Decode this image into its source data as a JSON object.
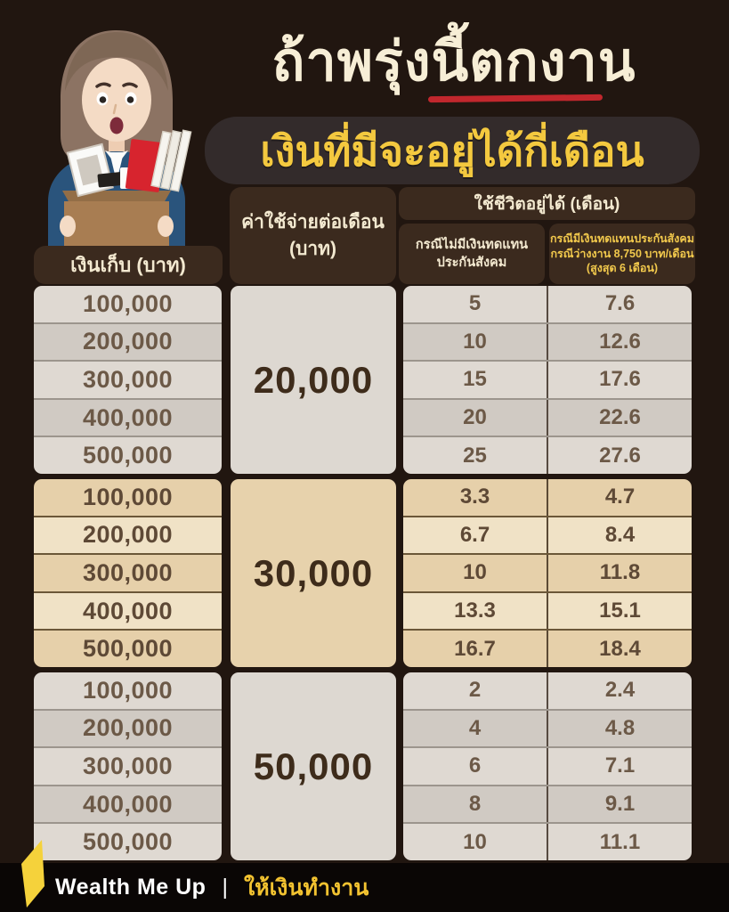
{
  "header": {
    "title": "ถ้าพรุ่งนี้ตกงาน",
    "subtitle": "เงินที่มีจะอยู่ได้กี่เดือน"
  },
  "table": {
    "headers": {
      "savings": "เงินเก็บ (บาท)",
      "expense_line1": "ค่าใช้จ่ายต่อเดือน",
      "expense_line2": "(บาท)",
      "months": "ใช้ชีวิตอยู่ได้ (เดือน)",
      "no_comp_line1": "กรณีไม่มีเงินทดแทน",
      "no_comp_line2": "ประกันสังคม",
      "with_comp_line1": "กรณีมีเงินทดแทนประกันสังคม",
      "with_comp_line2": "กรณีว่างงาน 8,750 บาท/เดือน",
      "with_comp_line3": "(สูงสุด 6 เดือน)"
    },
    "sections": [
      {
        "expense": "20,000",
        "theme": "gray",
        "rows": [
          {
            "savings": "100,000",
            "no_comp": "5",
            "with_comp": "7.6"
          },
          {
            "savings": "200,000",
            "no_comp": "10",
            "with_comp": "12.6"
          },
          {
            "savings": "300,000",
            "no_comp": "15",
            "with_comp": "17.6"
          },
          {
            "savings": "400,000",
            "no_comp": "20",
            "with_comp": "22.6"
          },
          {
            "savings": "500,000",
            "no_comp": "25",
            "with_comp": "27.6"
          }
        ]
      },
      {
        "expense": "30,000",
        "theme": "tan",
        "rows": [
          {
            "savings": "100,000",
            "no_comp": "3.3",
            "with_comp": "4.7"
          },
          {
            "savings": "200,000",
            "no_comp": "6.7",
            "with_comp": "8.4"
          },
          {
            "savings": "300,000",
            "no_comp": "10",
            "with_comp": "11.8"
          },
          {
            "savings": "400,000",
            "no_comp": "13.3",
            "with_comp": "15.1"
          },
          {
            "savings": "500,000",
            "no_comp": "16.7",
            "with_comp": "18.4"
          }
        ]
      },
      {
        "expense": "50,000",
        "theme": "gray",
        "rows": [
          {
            "savings": "100,000",
            "no_comp": "2",
            "with_comp": "2.4"
          },
          {
            "savings": "200,000",
            "no_comp": "4",
            "with_comp": "4.8"
          },
          {
            "savings": "300,000",
            "no_comp": "6",
            "with_comp": "7.1"
          },
          {
            "savings": "400,000",
            "no_comp": "8",
            "with_comp": "9.1"
          },
          {
            "savings": "500,000",
            "no_comp": "10",
            "with_comp": "11.1"
          }
        ]
      }
    ]
  },
  "footer": {
    "brand": "Wealth Me Up",
    "separator": "|",
    "tagline": "ให้เงินทำงาน"
  },
  "palette": {
    "background": "#211610",
    "header_box": "#3B2A1E",
    "cream_text": "#F7EED6",
    "gold_text": "#F4C93F",
    "gold_subheader": "#F2C94C",
    "red_underline": "#C1272D",
    "footer_bg": "#0A0605",
    "footer_yellow": "#F2C230",
    "logo_yellow": "#F5D23B",
    "themes": {
      "gray": {
        "rowA": "#DFD9D2",
        "rowB": "#D0CAC3",
        "cellB": "#DDD8D1",
        "sep": "#9C958D",
        "div": "#564A40",
        "num": "#6C5947",
        "big": "#3E2C1B"
      },
      "tan": {
        "rowA": "#E6D0AA",
        "rowB": "#F0E2C6",
        "cellB": "#E7D2AC",
        "sep": "#6B5738",
        "div": "#5B4A35",
        "num": "#5E4936",
        "big": "#3E2C1B"
      }
    }
  },
  "chart_data": {
    "type": "table",
    "title": "ถ้าพรุ่งนี้ตกงาน เงินที่มีจะอยู่ได้กี่เดือน",
    "columns": [
      "เงินเก็บ (บาท)",
      "ค่าใช้จ่ายต่อเดือน (บาท)",
      "ใช้ชีวิตอยู่ได้ (เดือน) กรณีไม่มีเงินทดแทนประกันสังคม",
      "ใช้ชีวิตอยู่ได้ (เดือน) กรณีมีเงินทดแทนประกันสังคม กรณีว่างงาน 8,750 บาท/เดือน (สูงสุด 6 เดือน)"
    ],
    "rows": [
      [
        100000,
        20000,
        5,
        7.6
      ],
      [
        200000,
        20000,
        10,
        12.6
      ],
      [
        300000,
        20000,
        15,
        17.6
      ],
      [
        400000,
        20000,
        20,
        22.6
      ],
      [
        500000,
        20000,
        25,
        27.6
      ],
      [
        100000,
        30000,
        3.3,
        4.7
      ],
      [
        200000,
        30000,
        6.7,
        8.4
      ],
      [
        300000,
        30000,
        10,
        11.8
      ],
      [
        400000,
        30000,
        13.3,
        15.1
      ],
      [
        500000,
        30000,
        16.7,
        18.4
      ],
      [
        100000,
        50000,
        2,
        2.4
      ],
      [
        200000,
        50000,
        4,
        4.8
      ],
      [
        300000,
        50000,
        6,
        7.1
      ],
      [
        400000,
        50000,
        8,
        9.1
      ],
      [
        500000,
        50000,
        10,
        11.1
      ]
    ]
  }
}
